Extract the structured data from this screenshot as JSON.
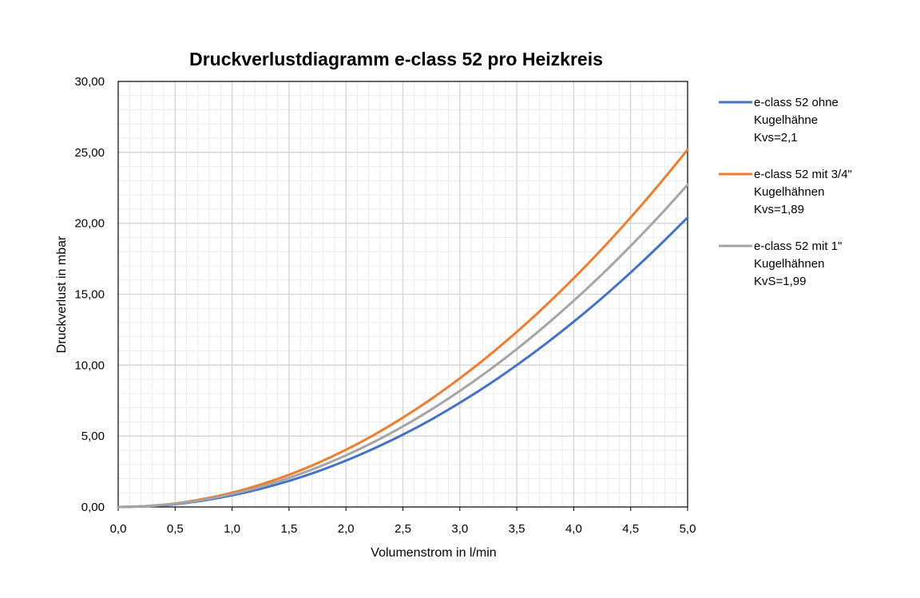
{
  "chart_data": {
    "type": "line",
    "title": "Druckverlustdiagramm e-class 52 pro Heizkreis",
    "xlabel": "Volumenstrom in l/min",
    "ylabel": "Druckverlust in mbar",
    "xlim": [
      0,
      5
    ],
    "ylim": [
      0,
      30
    ],
    "x_ticks": [
      "0,0",
      "0,5",
      "1,0",
      "1,5",
      "2,0",
      "2,5",
      "3,0",
      "3,5",
      "4,0",
      "4,5",
      "5,0"
    ],
    "y_ticks": [
      "0,00",
      "5,00",
      "10,00",
      "15,00",
      "20,00",
      "25,00",
      "30,00"
    ],
    "x_tick_values": [
      0,
      0.5,
      1,
      1.5,
      2,
      2.5,
      3,
      3.5,
      4,
      4.5,
      5
    ],
    "y_tick_values": [
      0,
      5,
      10,
      15,
      20,
      25,
      30
    ],
    "grid": true,
    "legend_position": "right",
    "x": [
      0,
      0.25,
      0.5,
      0.75,
      1,
      1.25,
      1.5,
      1.75,
      2,
      2.25,
      2.5,
      2.75,
      3,
      3.25,
      3.5,
      3.75,
      4,
      4.25,
      4.5,
      4.75,
      5
    ],
    "series": [
      {
        "name_lines": [
          "e-class 52 ohne",
          "Kugelhähne",
          "Kvs=2,1"
        ],
        "color": "#4472C4",
        "values": [
          0,
          0.05,
          0.2,
          0.46,
          0.82,
          1.28,
          1.84,
          2.5,
          3.27,
          4.14,
          5.1,
          6.17,
          7.35,
          8.62,
          10.0,
          11.48,
          13.06,
          14.74,
          16.53,
          18.42,
          20.41
        ]
      },
      {
        "name_lines": [
          "e-class 52 mit 3/4\"",
          "Kugelhähnen",
          "Kvs=1,89"
        ],
        "color": "#ED7D31",
        "values": [
          0,
          0.06,
          0.25,
          0.57,
          1.01,
          1.58,
          2.27,
          3.09,
          4.03,
          5.1,
          6.3,
          7.62,
          9.07,
          10.64,
          12.34,
          14.17,
          16.12,
          18.2,
          20.41,
          22.74,
          25.19
        ]
      },
      {
        "name_lines": [
          "e-class 52 mit 1\"",
          "Kugelhähnen",
          "KvS=1,99"
        ],
        "color": "#A5A5A5",
        "values": [
          0,
          0.06,
          0.23,
          0.51,
          0.91,
          1.42,
          2.05,
          2.79,
          3.64,
          4.6,
          5.68,
          6.87,
          8.18,
          9.6,
          11.13,
          12.78,
          14.54,
          16.41,
          18.4,
          20.5,
          22.72
        ]
      }
    ]
  }
}
